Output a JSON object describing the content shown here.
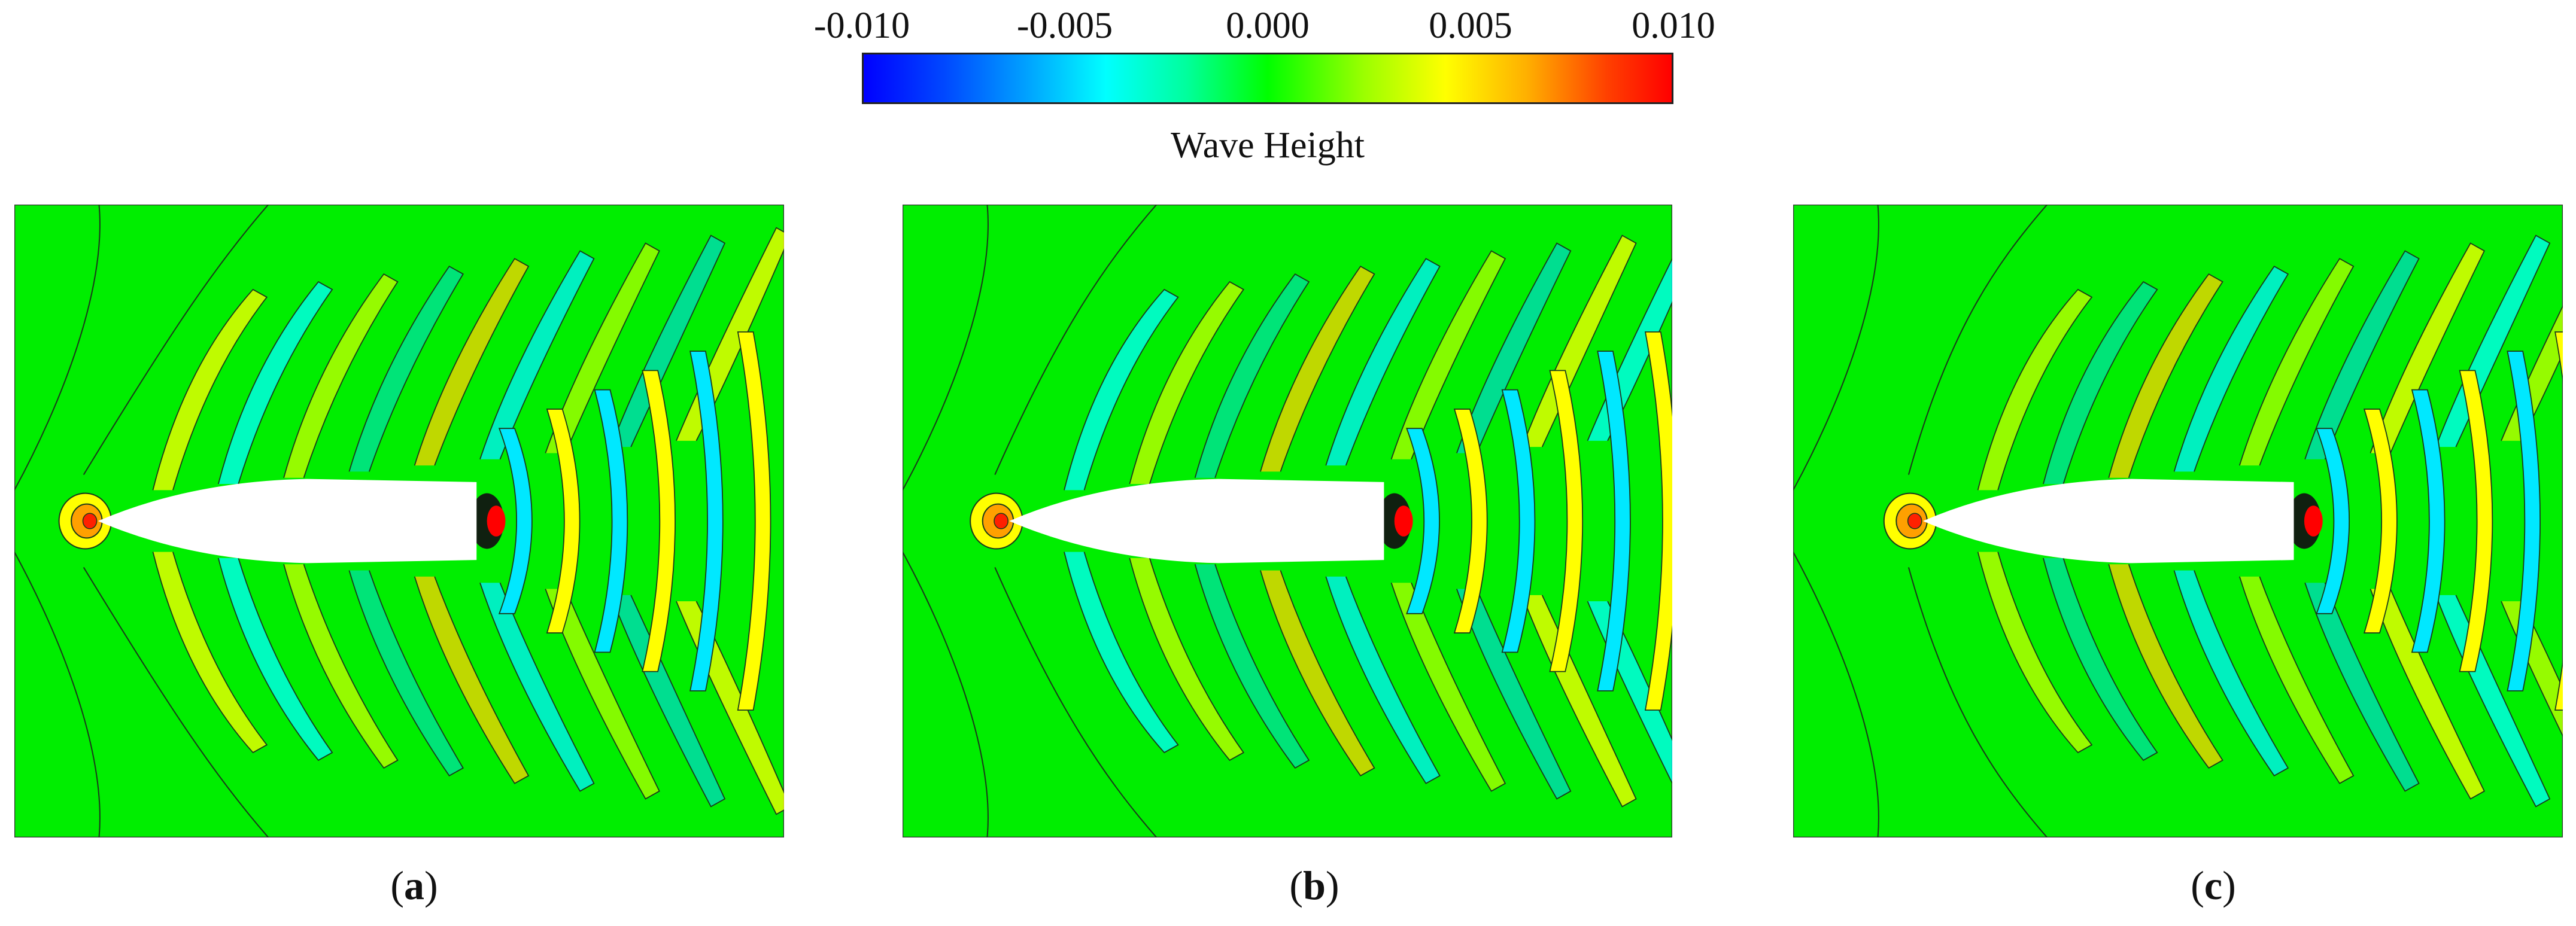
{
  "colorbar": {
    "title": "Wave Height",
    "ticks": [
      "-0.010",
      "-0.005",
      "0.000",
      "0.005",
      "0.010"
    ],
    "range": [
      -0.01,
      0.01
    ],
    "colors": [
      "#0000ff",
      "#00ffff",
      "#00ff00",
      "#ffff00",
      "#ff0000"
    ]
  },
  "panels": [
    {
      "letter": "a",
      "open": "(",
      "close": ")"
    },
    {
      "letter": "b",
      "open": "(",
      "close": ")"
    },
    {
      "letter": "c",
      "open": "(",
      "close": ")"
    }
  ],
  "chart_data": {
    "type": "heatmap",
    "description_values": "free-surface wave height contours around a ship hull, three cases",
    "colorbar_range": [
      -0.01,
      0.01
    ],
    "colorbar_ticks": [
      -0.01,
      -0.005,
      0.0,
      0.005,
      0.01
    ],
    "colorbar_label": "Wave Height",
    "panel_labels": [
      "(a)",
      "(b)",
      "(c)"
    ]
  }
}
